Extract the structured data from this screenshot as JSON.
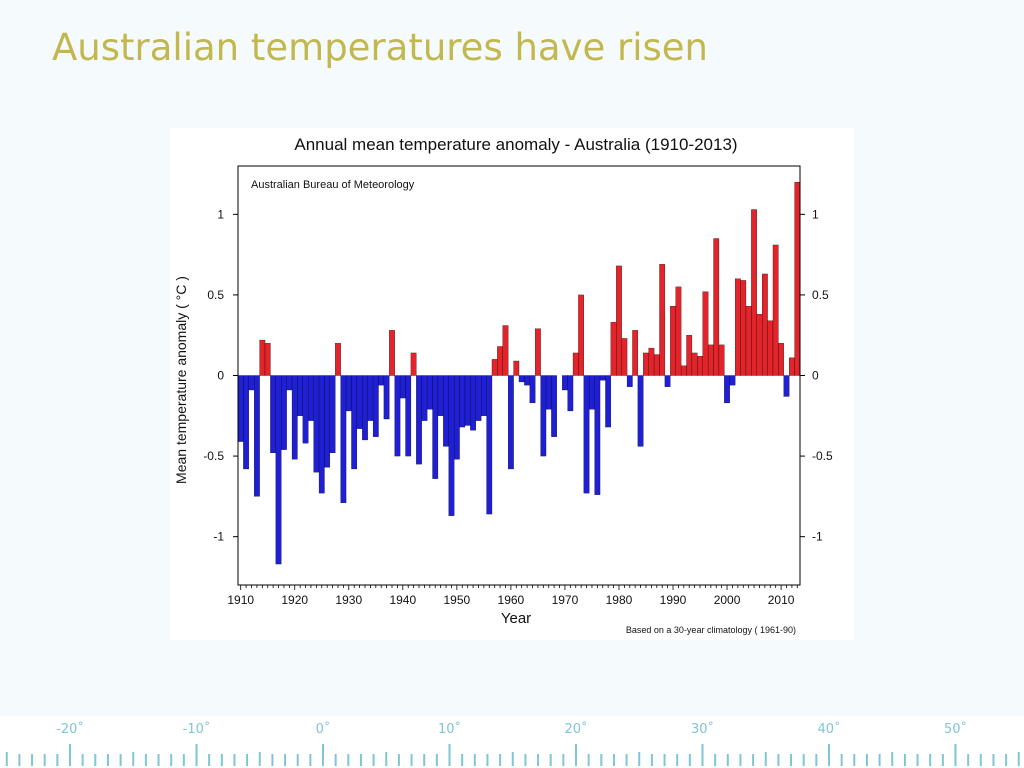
{
  "slide": {
    "title": "Australian temperatures have risen"
  },
  "colors": {
    "positive": "#e3252b",
    "negative": "#1f1fd6",
    "title": "#c2b84f",
    "ruler": "#7fc6d3"
  },
  "chart_data": {
    "type": "bar",
    "title": "Annual mean temperature anomaly - Australia (1910-2013)",
    "source_note": "Australian Bureau of Meteorology",
    "footnote": "Based on a 30-year climatology ( 1961-90)",
    "xlabel": "Year",
    "ylabel": "Mean temperature anomaly ( °C )",
    "xlim": [
      1909.5,
      2013.5
    ],
    "ylim": [
      -1.3,
      1.3
    ],
    "xticks": [
      1910,
      1920,
      1930,
      1940,
      1950,
      1960,
      1970,
      1980,
      1990,
      2000,
      2010
    ],
    "yticks": [
      -1,
      -0.5,
      0,
      0.5,
      1
    ],
    "ytick_labels": [
      "-1",
      "-0.5",
      "0",
      "0.5",
      "1"
    ],
    "grid": false,
    "start_year": 1910,
    "values": [
      -0.41,
      -0.58,
      -0.09,
      -0.75,
      0.22,
      0.2,
      -0.48,
      -1.17,
      -0.46,
      -0.09,
      -0.52,
      -0.25,
      -0.42,
      -0.28,
      -0.6,
      -0.73,
      -0.57,
      -0.48,
      0.2,
      -0.79,
      -0.22,
      -0.58,
      -0.33,
      -0.4,
      -0.28,
      -0.38,
      -0.06,
      -0.27,
      0.28,
      -0.5,
      -0.14,
      -0.5,
      0.14,
      -0.55,
      -0.28,
      -0.21,
      -0.64,
      -0.25,
      -0.44,
      -0.87,
      -0.52,
      -0.32,
      -0.31,
      -0.34,
      -0.28,
      -0.25,
      -0.86,
      0.1,
      0.18,
      0.31,
      -0.58,
      0.09,
      -0.04,
      -0.06,
      -0.17,
      0.29,
      -0.5,
      -0.21,
      -0.38,
      0.0,
      -0.09,
      -0.22,
      0.14,
      0.5,
      -0.73,
      -0.21,
      -0.74,
      -0.03,
      -0.32,
      0.33,
      0.68,
      0.23,
      -0.07,
      0.28,
      -0.44,
      0.14,
      0.17,
      0.13,
      0.69,
      -0.07,
      0.43,
      0.55,
      0.06,
      0.25,
      0.14,
      0.12,
      0.52,
      0.19,
      0.85,
      0.19,
      -0.17,
      -0.06,
      0.6,
      0.59,
      0.43,
      1.03,
      0.38,
      0.63,
      0.34,
      0.81,
      0.2,
      -0.13,
      0.11,
      1.2
    ]
  },
  "ruler": {
    "labels": [
      "-20˚",
      "-10˚",
      "0˚",
      "10˚",
      "20˚",
      "30˚",
      "40˚",
      "50˚"
    ]
  }
}
